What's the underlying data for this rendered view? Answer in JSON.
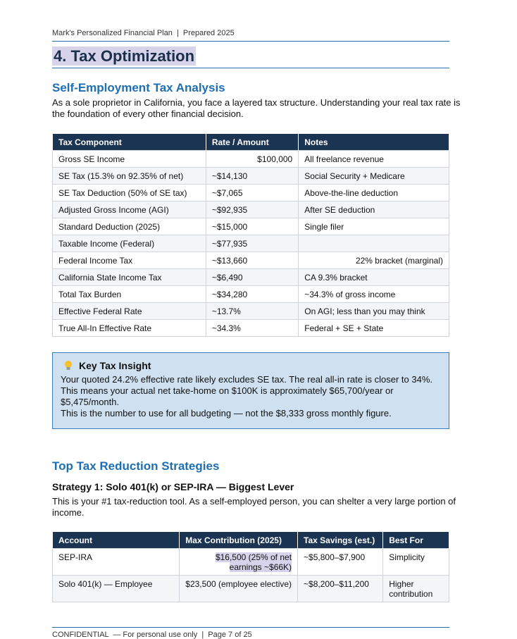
{
  "header": {
    "text": "Mark's Personalized Financial Plan  |  Prepared 2025"
  },
  "title": "4. Tax Optimization",
  "section1": {
    "heading": "Self-Employment Tax Analysis",
    "intro": "As a sole proprietor in California, you face a layered tax structure. Understanding your real tax rate is the foundation of every other financial decision.",
    "table": {
      "columns": [
        "Tax Component",
        "Rate / Amount",
        "Notes"
      ],
      "rows": [
        [
          "Gross SE Income",
          "$100,000",
          "All freelance revenue"
        ],
        [
          "SE Tax (15.3% on 92.35% of net)",
          "~$14,130",
          "Social Security + Medicare"
        ],
        [
          "SE Tax Deduction (50% of SE tax)",
          "~$7,065",
          "Above-the-line deduction"
        ],
        [
          "Adjusted Gross Income (AGI)",
          "~$92,935",
          "After SE deduction"
        ],
        [
          "Standard Deduction (2025)",
          "~$15,000",
          "Single filer"
        ],
        [
          "Taxable Income (Federal)",
          "~$77,935",
          null
        ],
        [
          "Federal Income Tax",
          "~$13,660",
          "22% bracket (marginal)"
        ],
        [
          "California State Income Tax",
          "~$6,490",
          "CA 9.3% bracket"
        ],
        [
          "Total Tax Burden",
          "~$34,280",
          "~34.3% of gross income"
        ],
        [
          "Effective Federal Rate",
          "~13.7%",
          "On AGI; less than you may think"
        ],
        [
          "True All-In Effective Rate",
          "~34.3%",
          "Federal + SE + State"
        ]
      ]
    }
  },
  "insight": {
    "heading": "Key Tax Insight",
    "paragraphs": [
      "Your quoted 24.2% effective rate likely excludes SE tax. The real all-in rate is closer to 34%.",
      "This means your actual net take-home on $100K is approximately $65,700/year or $5,475/month.",
      "This is the number to use for all budgeting — not the $8,333 gross monthly figure."
    ]
  },
  "section2": {
    "heading": "Top Tax Reduction Strategies",
    "strategy": {
      "heading": "Strategy 1: Solo 401(k) or SEP-IRA — Biggest Lever",
      "text": "This is your #1 tax-reduction tool. As a self-employed person, you can shelter a very large portion of income.",
      "table": {
        "columns": [
          "Account",
          "Max Contribution (2025)",
          "Tax Savings (est.)",
          "Best For"
        ],
        "rows": [
          [
            "SEP-IRA",
            "$16,500 (25% of net earnings ~$66K)",
            "~$5,800–$7,900",
            "Simplicity"
          ],
          [
            "Solo 401(k) — Employee",
            "$23,500 (employee elective)",
            "~$8,200–$11,200",
            "Higher contribution"
          ]
        ]
      }
    }
  },
  "footer": {
    "text": "CONFIDENTIAL  — For personal use only  |  Page 7 of 25"
  }
}
